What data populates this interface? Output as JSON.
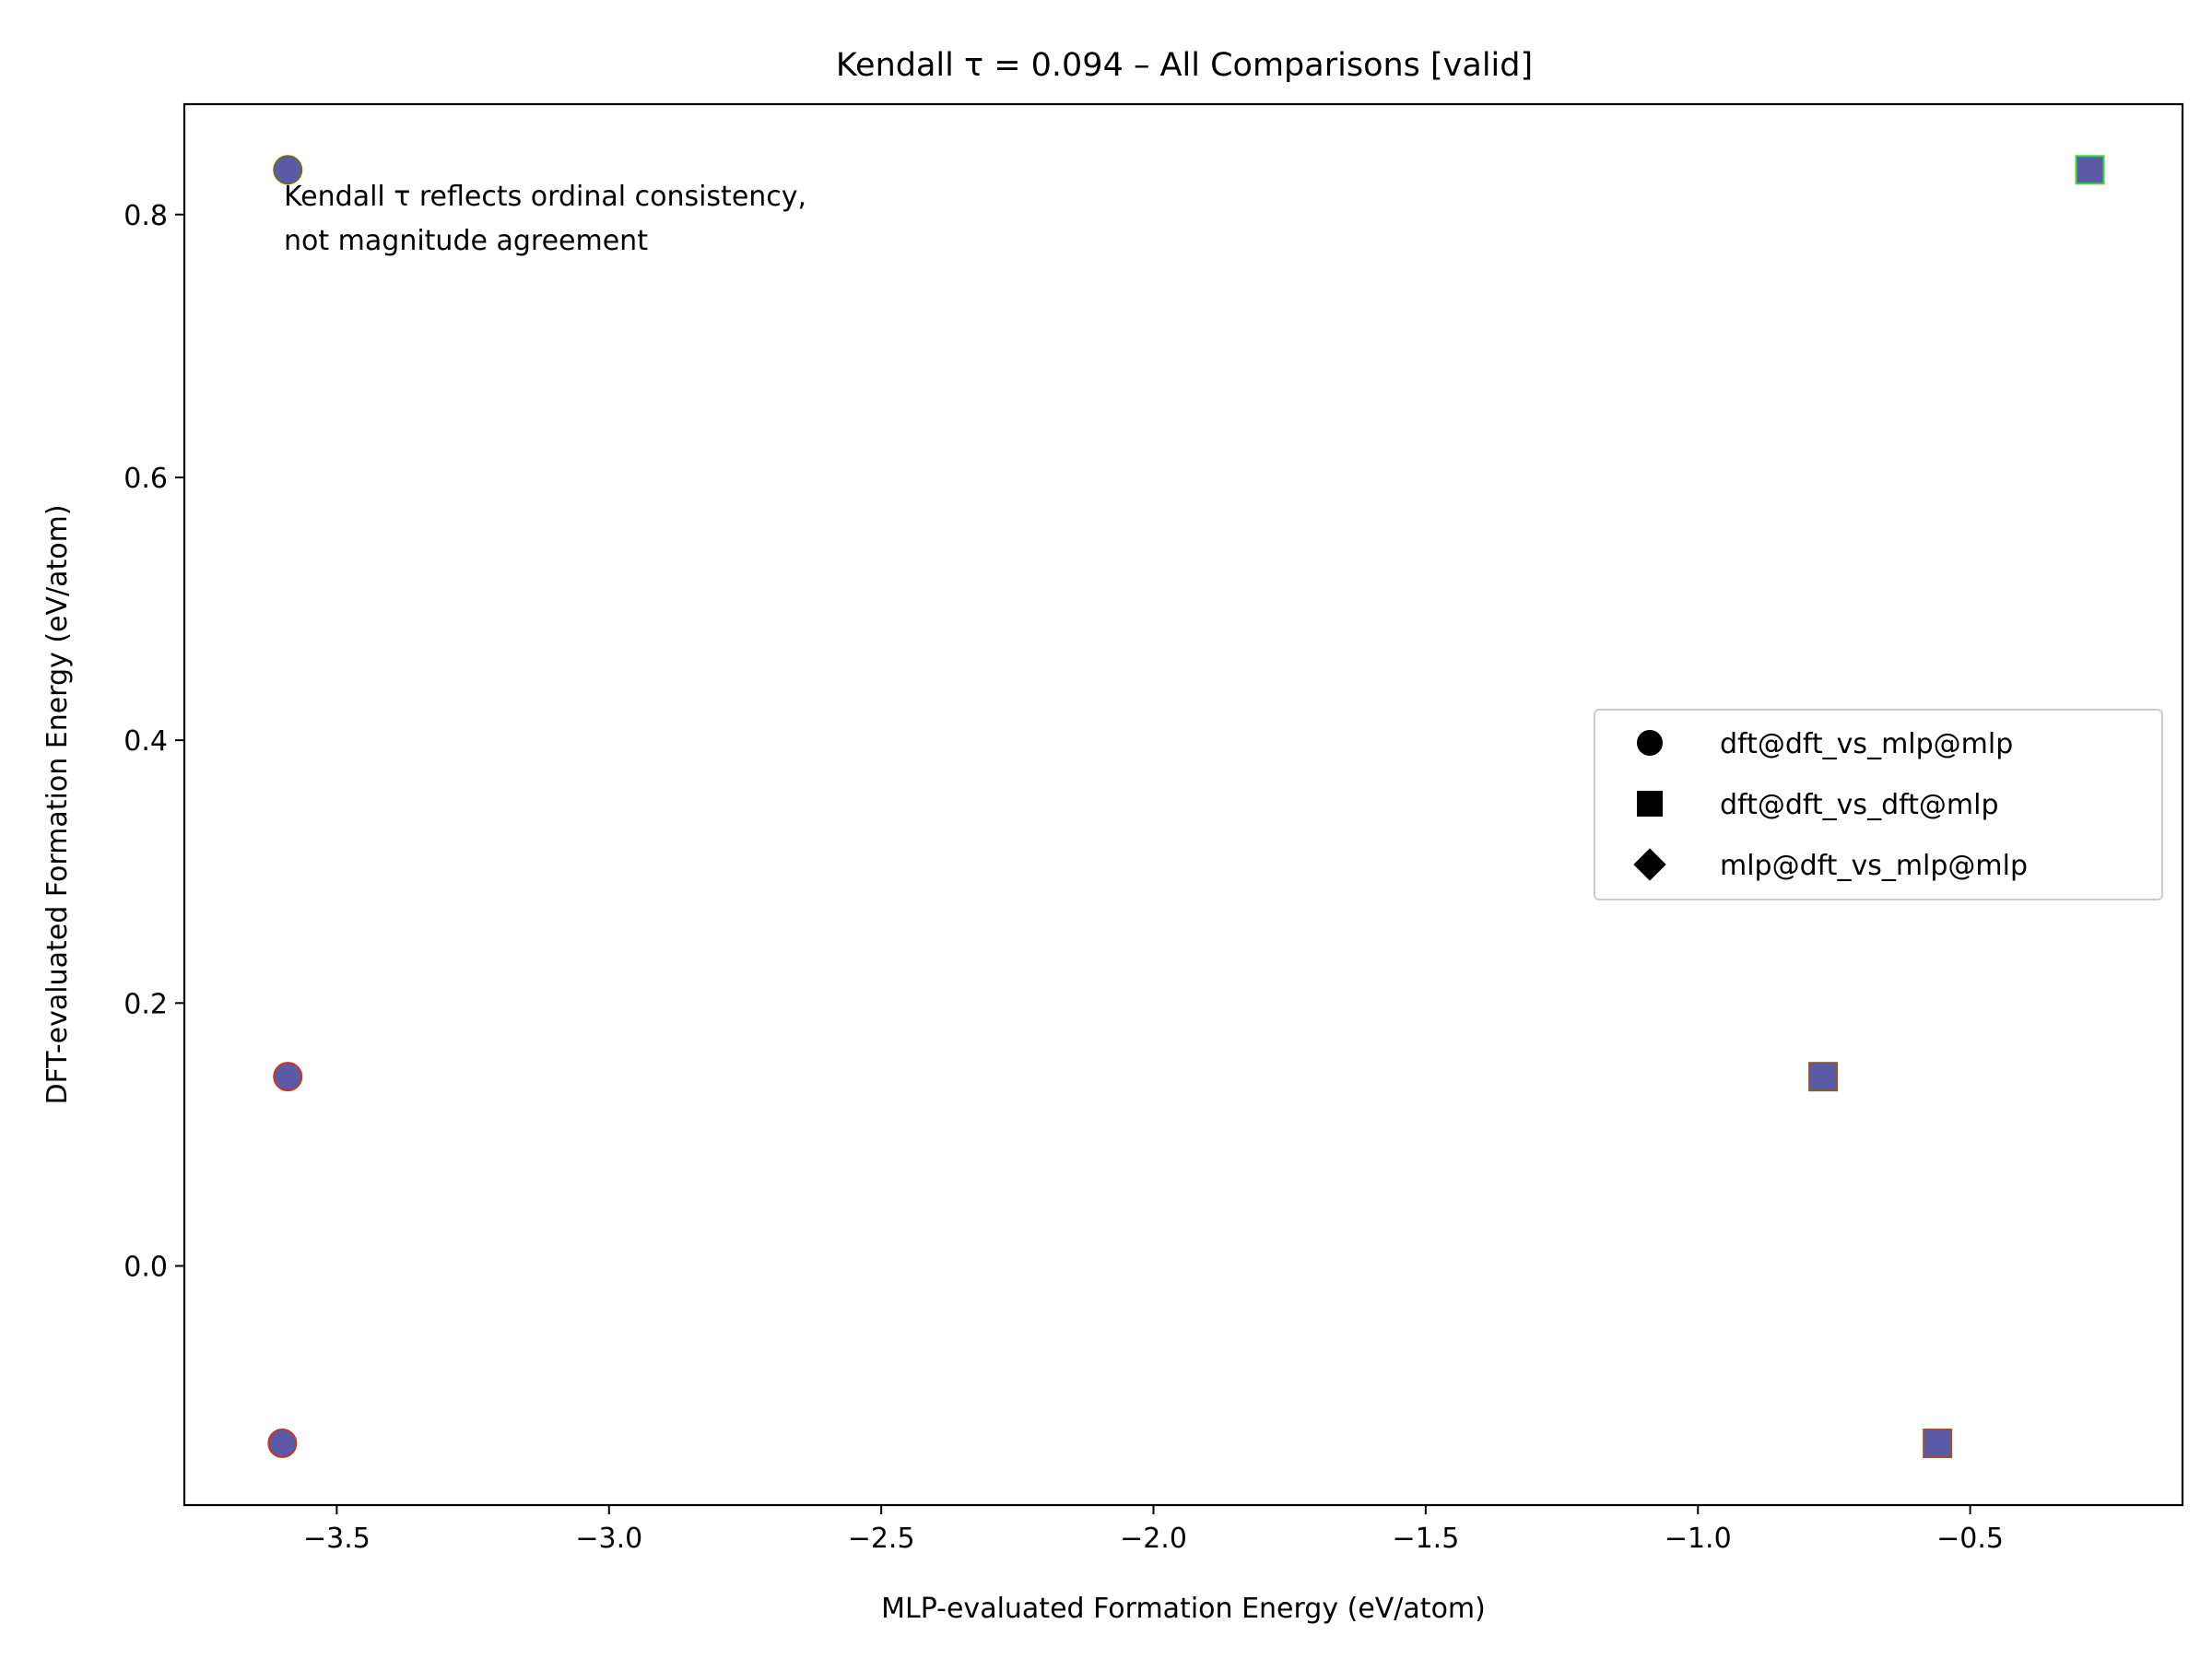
{
  "chart_data": {
    "type": "scatter",
    "title": "Kendall τ = 0.094 – All Comparisons [valid]",
    "xlabel": "MLP-evaluated Formation Energy (eV/atom)",
    "ylabel": "DFT-evaluated Formation Energy (eV/atom)",
    "xlim": [
      -3.78,
      -0.11
    ],
    "ylim": [
      -0.182,
      0.884
    ],
    "xticks": [
      -3.5,
      -3.0,
      -2.5,
      -2.0,
      -1.5,
      -1.0,
      -0.5
    ],
    "xtick_labels": [
      "−3.5",
      "−3.0",
      "−2.5",
      "−2.0",
      "−1.5",
      "−1.0",
      "−0.5"
    ],
    "yticks": [
      0.0,
      0.2,
      0.4,
      0.6,
      0.8
    ],
    "ytick_labels": [
      "0.0",
      "0.2",
      "0.4",
      "0.6",
      "0.8"
    ],
    "grid": false,
    "legend_position": "center-right",
    "annotation": "Kendall τ reflects ordinal consistency,\nnot magnitude agreement",
    "marker_fill": "#5a5aa6",
    "series": [
      {
        "name": "dft@dft_vs_mlp@mlp",
        "marker": "circle",
        "points": [
          {
            "x": -3.59,
            "y": 0.834,
            "edge": "#6b6b2a"
          },
          {
            "x": -3.59,
            "y": 0.144,
            "edge": "#cc3322"
          },
          {
            "x": -3.6,
            "y": -0.135,
            "edge": "#cc3322"
          }
        ]
      },
      {
        "name": "dft@dft_vs_dft@mlp",
        "marker": "square",
        "points": [
          {
            "x": -0.28,
            "y": 0.834,
            "edge": "#33dd33"
          },
          {
            "x": -0.77,
            "y": 0.144,
            "edge": "#8b5a2b"
          },
          {
            "x": -0.56,
            "y": -0.135,
            "edge": "#a0522d"
          }
        ]
      },
      {
        "name": "mlp@dft_vs_mlp@mlp",
        "marker": "diamond",
        "points": []
      }
    ]
  }
}
